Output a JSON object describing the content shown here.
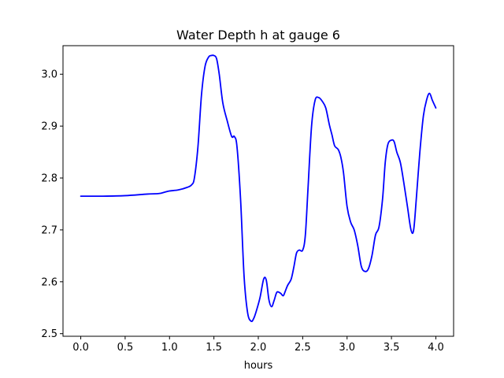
{
  "chart_data": {
    "type": "line",
    "title": "Water Depth h at gauge 6",
    "xlabel": "hours",
    "ylabel": "",
    "xlim": [
      -0.2,
      4.2
    ],
    "ylim": [
      2.495,
      3.055
    ],
    "x_ticks": [
      0.0,
      0.5,
      1.0,
      1.5,
      2.0,
      2.5,
      3.0,
      3.5,
      4.0
    ],
    "x_tick_labels": [
      "0.0",
      "0.5",
      "1.0",
      "1.5",
      "2.0",
      "2.5",
      "3.0",
      "3.5",
      "4.0"
    ],
    "y_ticks": [
      2.5,
      2.6,
      2.7,
      2.8,
      2.9,
      3.0
    ],
    "y_tick_labels": [
      "2.5",
      "2.6",
      "2.7",
      "2.8",
      "2.9",
      "3.0"
    ],
    "grid": false,
    "series": [
      {
        "color": "#0000ff",
        "x": [
          0.0,
          0.25,
          0.5,
          0.75,
          0.88,
          0.95,
          1.0,
          1.1,
          1.2,
          1.25,
          1.28,
          1.32,
          1.36,
          1.4,
          1.44,
          1.47,
          1.5,
          1.53,
          1.56,
          1.6,
          1.65,
          1.7,
          1.73,
          1.76,
          1.8,
          1.84,
          1.88,
          1.92,
          1.95,
          1.98,
          2.02,
          2.06,
          2.09,
          2.12,
          2.15,
          2.18,
          2.21,
          2.25,
          2.28,
          2.3,
          2.33,
          2.37,
          2.4,
          2.43,
          2.46,
          2.5,
          2.53,
          2.56,
          2.6,
          2.64,
          2.68,
          2.72,
          2.76,
          2.8,
          2.83,
          2.86,
          2.9,
          2.93,
          2.96,
          3.0,
          3.04,
          3.08,
          3.12,
          3.16,
          3.2,
          3.24,
          3.28,
          3.32,
          3.36,
          3.4,
          3.43,
          3.46,
          3.5,
          3.53,
          3.56,
          3.6,
          3.64,
          3.68,
          3.72,
          3.75,
          3.78,
          3.82,
          3.86,
          3.9,
          3.93,
          3.96,
          4.0
        ],
        "y": [
          2.765,
          2.765,
          2.766,
          2.769,
          2.77,
          2.773,
          2.775,
          2.777,
          2.782,
          2.787,
          2.8,
          2.86,
          2.96,
          3.015,
          3.033,
          3.036,
          3.036,
          3.03,
          3.0,
          2.945,
          2.91,
          2.88,
          2.88,
          2.86,
          2.76,
          2.61,
          2.54,
          2.524,
          2.53,
          2.545,
          2.57,
          2.605,
          2.603,
          2.565,
          2.552,
          2.565,
          2.58,
          2.578,
          2.573,
          2.58,
          2.593,
          2.605,
          2.628,
          2.655,
          2.661,
          2.661,
          2.69,
          2.78,
          2.9,
          2.95,
          2.955,
          2.948,
          2.935,
          2.903,
          2.883,
          2.862,
          2.855,
          2.84,
          2.81,
          2.745,
          2.715,
          2.7,
          2.67,
          2.63,
          2.62,
          2.625,
          2.65,
          2.69,
          2.706,
          2.76,
          2.83,
          2.865,
          2.873,
          2.87,
          2.85,
          2.83,
          2.79,
          2.745,
          2.7,
          2.7,
          2.76,
          2.85,
          2.92,
          2.953,
          2.963,
          2.95,
          2.935
        ]
      }
    ]
  }
}
